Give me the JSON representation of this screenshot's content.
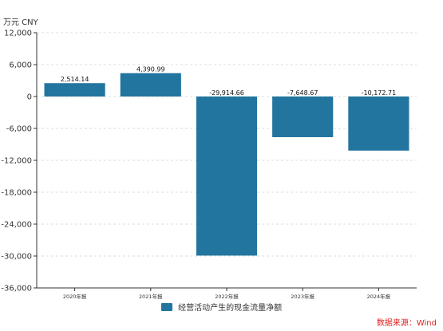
{
  "unit_label": "万元  CNY",
  "source": "数据来源：Wind",
  "colors": {
    "bar": "#22759f",
    "source": "#e02020",
    "axis": "#333333",
    "grid": "#dddddd"
  },
  "chart_data": {
    "type": "bar",
    "categories": [
      "2020年报",
      "2021年报",
      "2022年报",
      "2023年报",
      "2024年报"
    ],
    "series": [
      {
        "name": "经营活动产生的现金流量净额",
        "values": [
          2514.14,
          4390.99,
          -29914.66,
          -7648.67,
          -10172.71
        ]
      }
    ],
    "data_labels": [
      "2,514.14",
      "4,390.99",
      "-29,914.66",
      "-7,648.67",
      "-10,172.71"
    ],
    "ylim": [
      -36000,
      12000
    ],
    "yticks": [
      12000,
      6000,
      0,
      -6000,
      -12000,
      -18000,
      -24000,
      -30000,
      -36000
    ],
    "ytick_labels": [
      "12,000",
      "6,000",
      "0",
      "-6,000",
      "-12,000",
      "-18,000",
      "-24,000",
      "-30,000",
      "-36,000"
    ],
    "grid": true,
    "legend_position": "bottom-center"
  }
}
